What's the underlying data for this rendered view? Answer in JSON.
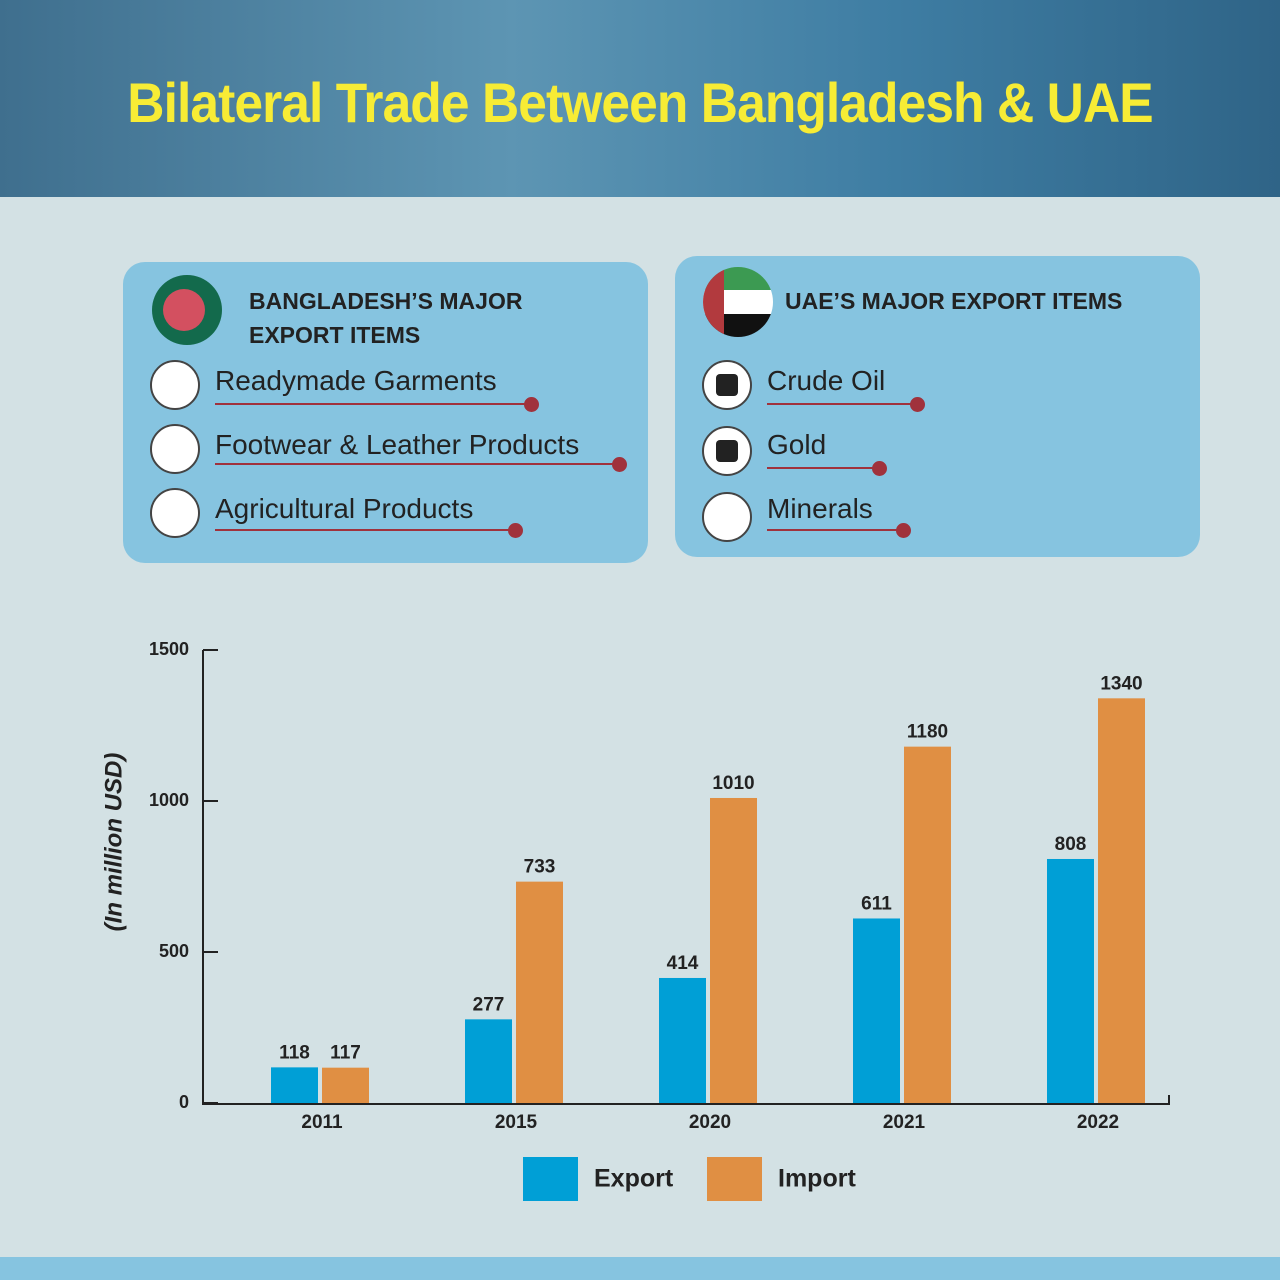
{
  "title": "Bilateral Trade Between Bangladesh & UAE",
  "panels": [
    {
      "heading": "BANGLADESH’S MAJOR EXPORT ITEMS",
      "items": [
        "Readymade Garments",
        "Footwear & Leather Products",
        "Agricultural Products"
      ]
    },
    {
      "heading": "UAE’S MAJOR EXPORT ITEMS",
      "items": [
        "Crude Oil",
        "Gold",
        "Minerals"
      ]
    }
  ],
  "chart_data": {
    "type": "bar",
    "y_label": "(In million USD)",
    "categories": [
      "2011",
      "2015",
      "2020",
      "2021",
      "2022"
    ],
    "series": [
      {
        "name": "Export",
        "color": "#009fd6",
        "values": [
          118,
          277,
          414,
          611,
          808
        ]
      },
      {
        "name": "Import",
        "color": "#e08f43",
        "values": [
          117,
          733,
          1010,
          1180,
          1340
        ]
      }
    ],
    "ylim": [
      0,
      1500
    ],
    "yticks": [
      0,
      500,
      1000,
      1500
    ],
    "grid": false
  }
}
